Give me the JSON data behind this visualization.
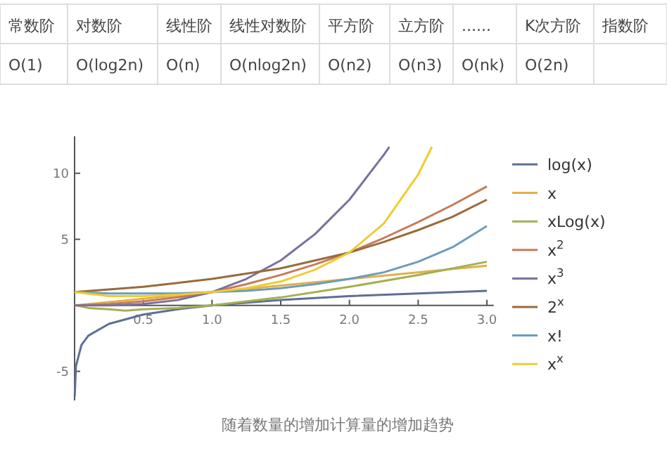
{
  "chart_data": {
    "type": "line",
    "annotations": [
      "常数阶",
      "对数阶",
      "线性阶",
      "线性对数阶",
      "平方阶",
      "立方阶",
      "......",
      "K次方阶",
      "指数阶",
      "O(1)",
      "O(log2n)",
      "O(n)",
      "O(nlog2n)",
      "O(n2)",
      "O(n3)",
      "O(nk)",
      "O(2n)",
      "随着数量的增加计算量的增加趋势"
    ],
    "x": [
      0,
      0.25,
      0.5,
      0.75,
      1,
      1.25,
      1.5,
      1.75,
      2,
      2.25,
      2.5,
      2.75,
      3
    ],
    "xlim": [
      0,
      3.05
    ],
    "ylim": [
      -7.2,
      12.8
    ],
    "xticks": [
      0.5,
      {
        "value": 1,
        "label": "1.0"
      },
      1.5,
      {
        "value": 2,
        "label": "2.0"
      },
      2.5,
      {
        "value": 3,
        "label": "3.0"
      }
    ],
    "yticks": [
      -5,
      5,
      10
    ],
    "grid": false,
    "legend": "right",
    "series": [
      {
        "name": "log(x)",
        "color": "#5e6f96",
        "x": [
          0.001,
          0.01,
          0.05,
          0.1,
          0.25,
          0.5,
          0.75,
          1,
          1.5,
          2,
          2.5,
          3
        ],
        "values": [
          -6.9,
          -4.6,
          -3.0,
          -2.3,
          -1.4,
          -0.7,
          -0.3,
          0,
          0.4,
          0.7,
          0.9,
          1.1
        ]
      },
      {
        "name": "x",
        "color": "#e1b04a",
        "x": [
          0,
          3
        ],
        "values": [
          0,
          3
        ]
      },
      {
        "name": "xLog(x)",
        "color": "#a3b050",
        "x": [
          0.01,
          0.1,
          0.25,
          0.37,
          0.5,
          0.75,
          1,
          1.5,
          2,
          2.5,
          3
        ],
        "values": [
          0,
          -0.2,
          -0.3,
          -0.4,
          -0.3,
          -0.2,
          0,
          0.6,
          1.4,
          2.3,
          3.3
        ]
      },
      {
        "name": "x$^{2}$",
        "color": "#c77a5a",
        "values": [
          0,
          0.1,
          0.3,
          0.6,
          1,
          1.6,
          2.3,
          3.1,
          4,
          5.1,
          6.3,
          7.6,
          9
        ]
      },
      {
        "name": "x$^{3}$",
        "color": "#7c6f9e",
        "x": [
          0,
          0.25,
          0.5,
          0.75,
          1,
          1.25,
          1.5,
          1.75,
          2,
          2.25,
          2.29
        ],
        "values": [
          0,
          0,
          0.1,
          0.4,
          1,
          2,
          3.4,
          5.4,
          8,
          11.4,
          12
        ]
      },
      {
        "name": "2$^{x}$",
        "color": "#9a6a3a",
        "values": [
          1,
          1.2,
          1.4,
          1.7,
          2,
          2.4,
          2.8,
          3.4,
          4,
          4.8,
          5.7,
          6.7,
          8
        ]
      },
      {
        "name": "x!",
        "color": "#6c9cbb",
        "values": [
          1,
          0.9,
          0.9,
          0.9,
          1,
          1.1,
          1.3,
          1.6,
          2,
          2.5,
          3.3,
          4.4,
          6
        ]
      },
      {
        "name": "x$^{x}$",
        "color": "#f0cc30",
        "x": [
          0,
          0.25,
          0.5,
          0.75,
          1,
          1.25,
          1.5,
          1.75,
          2,
          2.25,
          2.5,
          2.6
        ],
        "values": [
          1,
          0.7,
          0.7,
          0.8,
          1,
          1.3,
          1.8,
          2.7,
          4,
          6.2,
          9.9,
          12
        ]
      }
    ]
  }
}
